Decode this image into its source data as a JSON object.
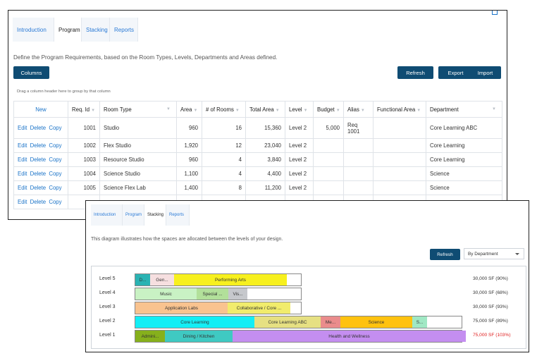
{
  "program_panel": {
    "tabs": [
      {
        "label": "Introduction",
        "active": false
      },
      {
        "label": "Program",
        "active": true
      },
      {
        "label": "Stacking",
        "active": false
      },
      {
        "label": "Reports",
        "active": false
      }
    ],
    "description": "Define the Program Requirements, based on the Room Types, Levels, Departments and Areas defined.",
    "buttons": {
      "columns": "Columns",
      "refresh": "Refresh",
      "export": "Export",
      "import": "Import"
    },
    "drag_hint": "Drag a column header here to group by that column",
    "grid": {
      "headers": {
        "new": "New",
        "req_id": "Req. Id",
        "room_type": "Room Type",
        "area": "Area",
        "num_rooms": "# of Rooms",
        "total_area": "Total Area",
        "level": "Level",
        "budget": "Budget",
        "alias": "Alias",
        "functional_area": "Functional Area",
        "department": "Department"
      },
      "action_labels": {
        "edit": "Edit",
        "delete": "Delete",
        "copy": "Copy"
      },
      "rows": [
        {
          "req_id": "1001",
          "room_type": "Studio",
          "area": "960",
          "num_rooms": "16",
          "total_area": "15,360",
          "level": "Level 2",
          "budget": "5,000",
          "alias_line1": "Req",
          "alias_line2": "1001",
          "functional_area": "",
          "department": "Core Learning ABC"
        },
        {
          "req_id": "1002",
          "room_type": "Flex Studio",
          "area": "1,920",
          "num_rooms": "12",
          "total_area": "23,040",
          "level": "Level 2",
          "budget": "",
          "alias_line1": "",
          "alias_line2": "",
          "functional_area": "",
          "department": "Core Learning"
        },
        {
          "req_id": "1003",
          "room_type": "Resource Studio",
          "area": "960",
          "num_rooms": "4",
          "total_area": "3,840",
          "level": "Level 2",
          "budget": "",
          "alias_line1": "",
          "alias_line2": "",
          "functional_area": "",
          "department": "Core Learning"
        },
        {
          "req_id": "1004",
          "room_type": "Science Studio",
          "area": "1,100",
          "num_rooms": "4",
          "total_area": "4,400",
          "level": "Level 2",
          "budget": "",
          "alias_line1": "",
          "alias_line2": "",
          "functional_area": "",
          "department": "Science"
        },
        {
          "req_id": "1005",
          "room_type": "Science Flex Lab",
          "area": "1,400",
          "num_rooms": "8",
          "total_area": "11,200",
          "level": "Level 2",
          "budget": "",
          "alias_line1": "",
          "alias_line2": "",
          "functional_area": "",
          "department": "Science"
        }
      ]
    }
  },
  "stacking_panel": {
    "tabs": [
      {
        "label": "Introduction",
        "active": false
      },
      {
        "label": "Program",
        "active": false
      },
      {
        "label": "Stacking",
        "active": true
      },
      {
        "label": "Reports",
        "active": false
      }
    ],
    "description": "This diagram illustrates how the spaces are allocated between the levels of your design.",
    "refresh_label": "Refresh",
    "group_by": "By Department",
    "levels": [
      {
        "name": "Level 5",
        "summary": "30,000 SF (90%)",
        "over_capacity": false,
        "capacity_fraction": 0.504,
        "segments": [
          {
            "label": "D...",
            "color": "#2ab3b3",
            "share": 0.045
          },
          {
            "label": "Gen...",
            "color": "#f6dfe0",
            "share": 0.072
          },
          {
            "label": "Performing Arts",
            "color": "#f7f01e",
            "share": 0.34
          }
        ]
      },
      {
        "name": "Level 4",
        "summary": "30,000 SF (68%)",
        "over_capacity": false,
        "capacity_fraction": 0.504,
        "segments": [
          {
            "label": "Music",
            "color": "#c9f2c4",
            "share": 0.185
          },
          {
            "label": "Special ...",
            "color": "#b2e09a",
            "share": 0.095
          },
          {
            "label": "Vis...",
            "color": "#c6c8cc",
            "share": 0.058
          }
        ]
      },
      {
        "name": "Level 3",
        "summary": "30,000 SF (93%)",
        "over_capacity": false,
        "capacity_fraction": 0.504,
        "segments": [
          {
            "label": "Application Labs",
            "color": "#f9c38f",
            "share": 0.278
          },
          {
            "label": "Collaborative / Core ...",
            "color": "#f1ec6c",
            "share": 0.19
          }
        ]
      },
      {
        "name": "Level 2",
        "summary": "75,000 SF (89%)",
        "over_capacity": false,
        "capacity_fraction": 0.99,
        "segments": [
          {
            "label": "Core Learning",
            "color": "#13eef5",
            "share": 0.36
          },
          {
            "label": "Core Learning ABC",
            "color": "#e6e082",
            "share": 0.2
          },
          {
            "label": "Me...",
            "color": "#ea8c8c",
            "share": 0.06
          },
          {
            "label": "Science",
            "color": "#ffc20f",
            "share": 0.218
          },
          {
            "label": "S...",
            "color": "#a0e8c4",
            "share": 0.045
          }
        ]
      },
      {
        "name": "Level 1",
        "summary": "75,000 SF (103%)",
        "over_capacity": true,
        "capacity_fraction": 0.99,
        "segments": [
          {
            "label": "Admini...",
            "color": "#86b01c",
            "share": 0.09
          },
          {
            "label": "Dining / Kitchen",
            "color": "#3fc9c2",
            "share": 0.205
          },
          {
            "label": "Health and Wellness",
            "color": "#c48ef0",
            "share": 0.705
          }
        ]
      }
    ]
  }
}
